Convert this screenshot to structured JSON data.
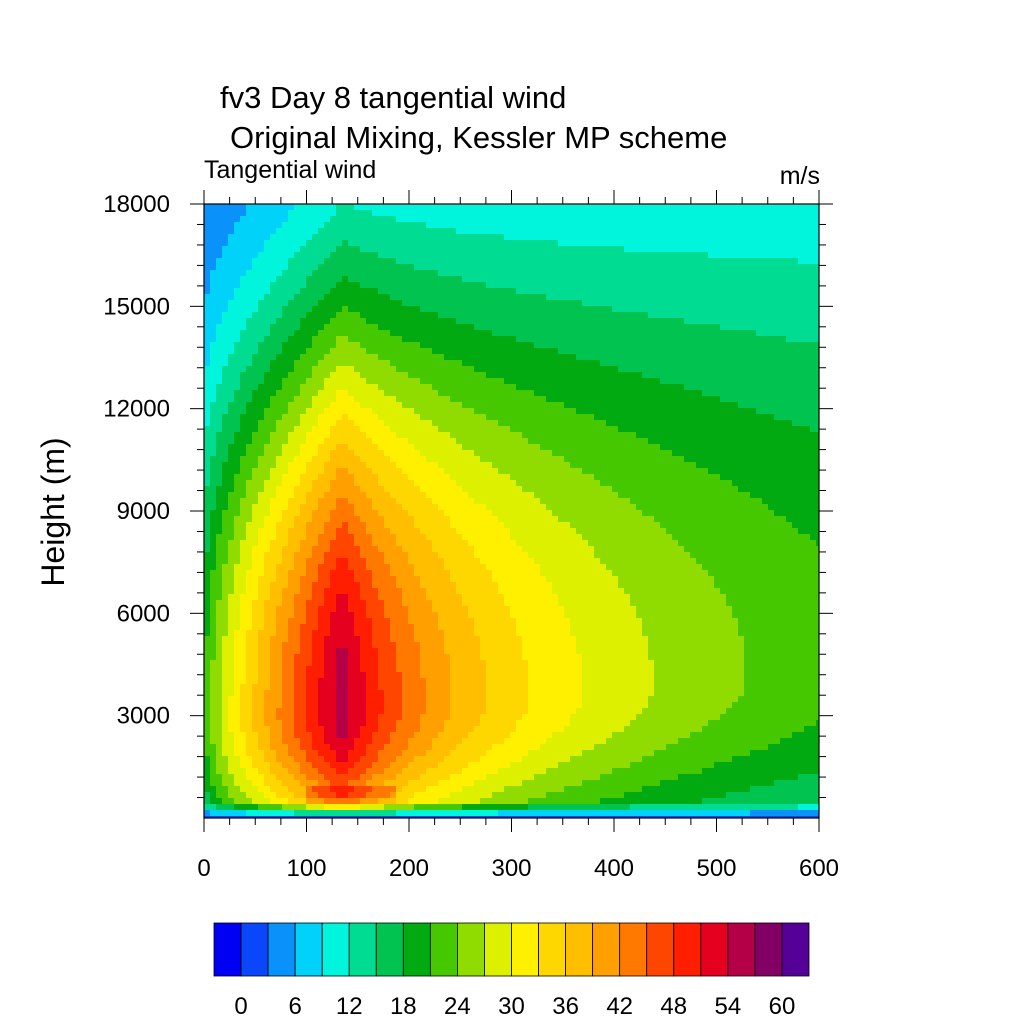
{
  "chart_data": {
    "type": "contour",
    "title": "fv3 Day 8 tangential wind",
    "subtitle": "Original Mixing,  Kessler MP scheme",
    "left_label": "Tangential wind",
    "units_label": "m/s",
    "xlabel": "",
    "ylabel": "Height (m)",
    "xlim": [
      0,
      600
    ],
    "ylim": [
      0,
      18000
    ],
    "x_ticks": [
      "0",
      "100",
      "200",
      "300",
      "400",
      "500",
      "600"
    ],
    "x_tick_values": [
      0,
      100,
      200,
      300,
      400,
      500,
      600
    ],
    "y_ticks": [
      "3000",
      "6000",
      "9000",
      "12000",
      "15000",
      "18000"
    ],
    "y_tick_values": [
      3000,
      6000,
      9000,
      12000,
      15000,
      18000
    ],
    "colorbar": {
      "levels": [
        0,
        3,
        6,
        9,
        12,
        15,
        18,
        21,
        24,
        27,
        30,
        33,
        36,
        39,
        42,
        45,
        48,
        51,
        54,
        57,
        60
      ],
      "labels": [
        "0",
        "6",
        "12",
        "18",
        "24",
        "30",
        "36",
        "42",
        "48",
        "54",
        "60"
      ],
      "label_values": [
        0,
        6,
        12,
        18,
        24,
        30,
        36,
        42,
        48,
        54,
        60
      ],
      "colors": [
        "#0000f5",
        "#0a46fa",
        "#0a91fa",
        "#00d2fa",
        "#00f5dc",
        "#00dc91",
        "#00c350",
        "#00aa10",
        "#46c800",
        "#91dc00",
        "#dcf000",
        "#fff000",
        "#ffd700",
        "#ffbe00",
        "#ffa000",
        "#ff7800",
        "#ff4600",
        "#ff1e00",
        "#e60020",
        "#b40046",
        "#820064",
        "#550096"
      ]
    },
    "field_model": {
      "core": {
        "r": 135,
        "z": 2800,
        "vmax": 56
      },
      "notes": "tangential wind decreasing outward from the radius of maximum wind and with height"
    }
  }
}
